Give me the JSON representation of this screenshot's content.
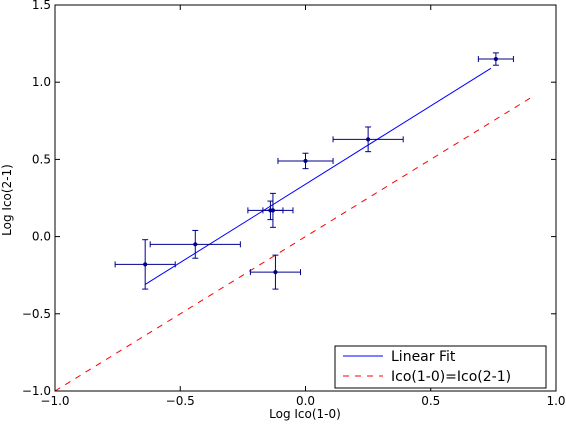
{
  "chart_data": {
    "type": "scatter",
    "title": "",
    "xlabel": "Log Ico(1-0)",
    "ylabel": "Log Ico(2-1)",
    "xlim": [
      -1.0,
      1.0
    ],
    "ylim": [
      -1.0,
      1.5
    ],
    "x_ticks": [
      -1.0,
      -0.5,
      0.0,
      0.5,
      1.0
    ],
    "x_tick_labels": [
      "−1.0",
      "−0.5",
      "0.0",
      "0.5",
      "1.0"
    ],
    "y_ticks": [
      -1.0,
      -0.5,
      0.0,
      0.5,
      1.0,
      1.5
    ],
    "y_tick_labels": [
      "−1.0",
      "−0.5",
      "0.0",
      "0.5",
      "1.0",
      "1.5"
    ],
    "grid": false,
    "legend_position": "bottom-right",
    "series": [
      {
        "kind": "errorbar",
        "color": "#00008b",
        "points": [
          {
            "x": -0.64,
            "y": -0.18,
            "xerr": 0.12,
            "yerr": 0.16
          },
          {
            "x": -0.44,
            "y": -0.05,
            "xerr": 0.18,
            "yerr": 0.09
          },
          {
            "x": -0.14,
            "y": 0.17,
            "xerr": 0.09,
            "yerr": 0.06
          },
          {
            "x": -0.13,
            "y": 0.17,
            "xerr": 0.04,
            "yerr": 0.11
          },
          {
            "x": -0.12,
            "y": -0.23,
            "xerr": 0.1,
            "yerr": 0.11
          },
          {
            "x": 0.0,
            "y": 0.49,
            "xerr": 0.11,
            "yerr": 0.05
          },
          {
            "x": 0.25,
            "y": 0.63,
            "xerr": 0.14,
            "yerr": 0.08
          },
          {
            "x": 0.76,
            "y": 1.15,
            "xerr": 0.07,
            "yerr": 0.04
          }
        ]
      },
      {
        "name": "Linear Fit",
        "kind": "line",
        "style": "solid",
        "color": "#0000ff",
        "x": [
          -0.64,
          0.74
        ],
        "y": [
          -0.31,
          1.09
        ]
      },
      {
        "name": "Ico(1-0)=Ico(2-1)",
        "kind": "line",
        "style": "dashed",
        "color": "#ff0000",
        "x": [
          -1.0,
          0.9
        ],
        "y": [
          -1.0,
          0.9
        ]
      }
    ]
  }
}
